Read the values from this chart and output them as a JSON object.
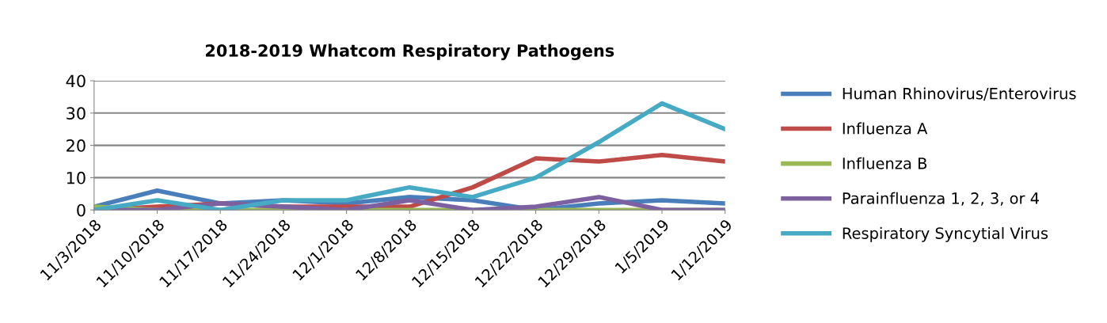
{
  "chart_data": {
    "type": "line",
    "title": "2018-2019 Whatcom Respiratory Pathogens",
    "categories": [
      "11/3/2018",
      "11/10/2018",
      "11/17/2018",
      "11/24/2018",
      "12/1/2018",
      "12/8/2018",
      "12/15/2018",
      "12/22/2018",
      "12/29/2018",
      "1/5/2019",
      "1/12/2019"
    ],
    "series": [
      {
        "name": "Human Rhinovirus/Enterovirus",
        "color": "#4a7ebb",
        "values": [
          1,
          6,
          2,
          3,
          2,
          4,
          3,
          0,
          2,
          3,
          2
        ]
      },
      {
        "name": "Influenza A",
        "color": "#be4b48",
        "values": [
          0,
          1,
          2,
          1,
          1,
          1,
          7,
          16,
          15,
          17,
          15
        ]
      },
      {
        "name": "Influenza B",
        "color": "#98b954",
        "values": [
          1,
          0,
          0,
          0,
          0,
          0,
          0,
          0,
          0,
          0,
          0
        ]
      },
      {
        "name": "Parainfluenza 1, 2, 3, or 4",
        "color": "#7d60a0",
        "values": [
          0,
          0,
          2,
          1,
          0,
          3,
          0,
          1,
          4,
          0,
          0
        ]
      },
      {
        "name": "Respiratory Syncytial Virus",
        "color": "#46aac5",
        "values": [
          0,
          3,
          0,
          3,
          3,
          7,
          4,
          10,
          21,
          33,
          25
        ]
      }
    ],
    "ylim": [
      0,
      40
    ],
    "yticks": [
      0,
      10,
      20,
      30,
      40
    ],
    "grid": "y",
    "legend": "right",
    "marker": "none",
    "line_style": "solid"
  }
}
